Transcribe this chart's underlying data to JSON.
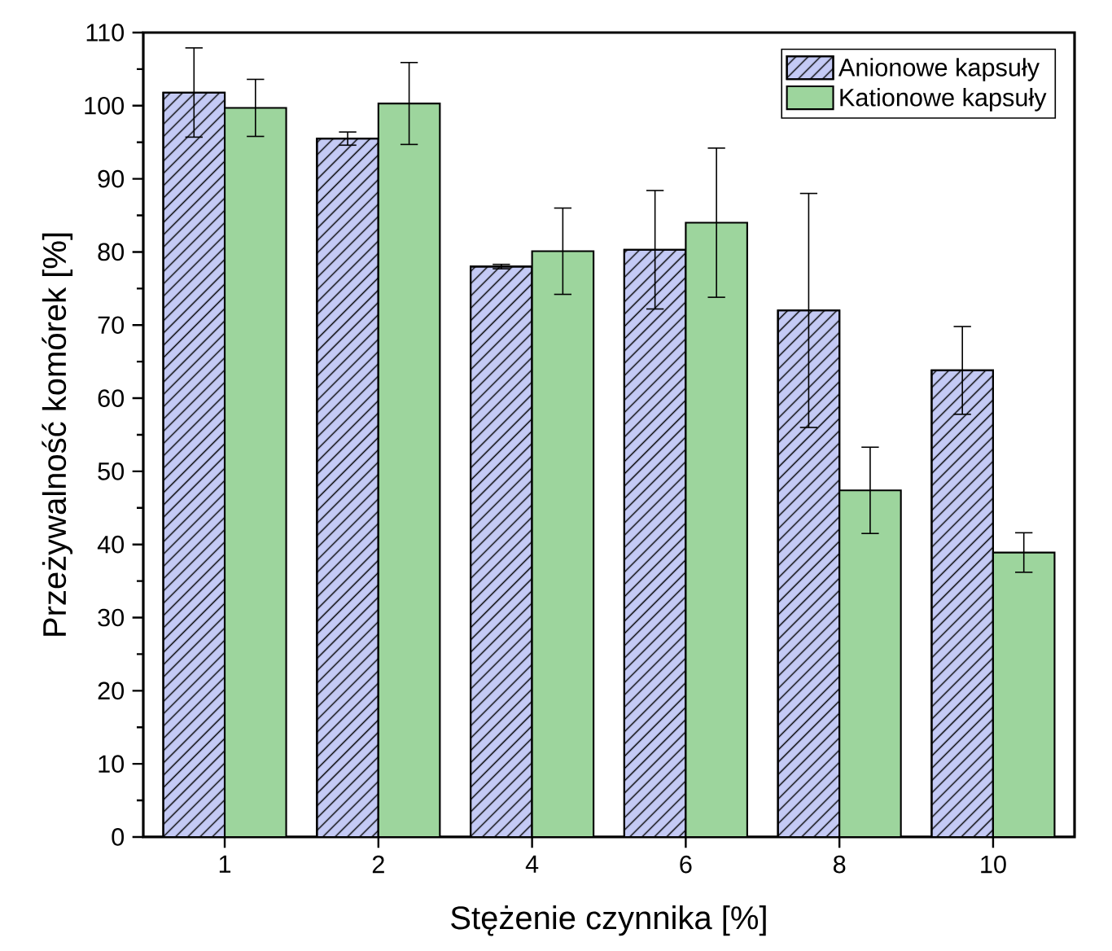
{
  "chart_data": {
    "type": "bar",
    "xlabel": "Stężenie czynnika [%]",
    "ylabel": "Przeżywalność komórek [%]",
    "categories": [
      "1",
      "2",
      "4",
      "6",
      "8",
      "10"
    ],
    "series": [
      {
        "name": "Anionowe kapsuły",
        "color": "#c4caf5",
        "values": [
          101.8,
          95.5,
          78.0,
          80.3,
          72.0,
          63.8
        ],
        "errors": [
          6.1,
          0.9,
          0.3,
          8.1,
          16.0,
          6.0
        ]
      },
      {
        "name": "Kationowe kapsuły",
        "color": "#9dd59d",
        "values": [
          99.7,
          100.3,
          80.1,
          84.0,
          47.4,
          38.9
        ],
        "errors": [
          3.9,
          5.6,
          5.9,
          10.2,
          5.9,
          2.7
        ]
      }
    ],
    "ylim": [
      0,
      110
    ],
    "yticks": [
      0,
      10,
      20,
      30,
      40,
      50,
      60,
      70,
      80,
      90,
      100,
      110
    ],
    "grid": false,
    "legend": "top right"
  }
}
